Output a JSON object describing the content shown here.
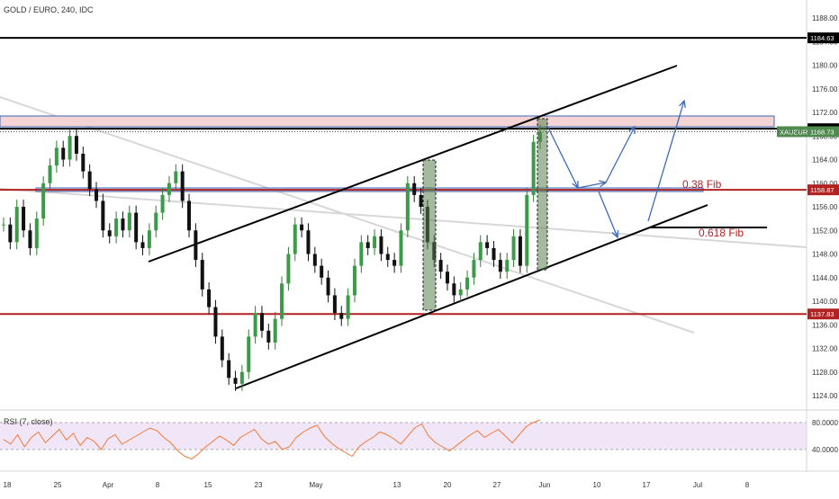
{
  "header": {
    "title": "GOLD / EURO, 240, IDC"
  },
  "rsi": {
    "title": "RSI (7, close)",
    "ticks": [
      80.0,
      40.0
    ],
    "tick_labels": [
      "80.0000",
      "40.0000"
    ]
  },
  "chart_data": {
    "type": "candlestick",
    "title": "GOLD / EURO, 240, IDC",
    "ylim": [
      1122,
      1190
    ],
    "y_ticks": [
      1124,
      1128,
      1132,
      1136,
      1140,
      1144,
      1148,
      1152,
      1156,
      1160,
      1164,
      1168,
      1172,
      1176,
      1180,
      1184,
      1188
    ],
    "y_tick_labels": [
      "1124.00",
      "1128.00",
      "1132.00",
      "1136.00",
      "1140.00",
      "1144.00",
      "1148.00",
      "1152.00",
      "1156.00",
      "1160.00",
      "1164.00",
      "1168.00",
      "1172.00",
      "1176.00",
      "1180.00",
      "1184.00",
      "1188.00"
    ],
    "x_ticks": [
      "18",
      "25",
      "Apr",
      "8",
      "15",
      "23",
      "May",
      "13",
      "20",
      "27",
      "Jun",
      "10",
      "17",
      "Jul",
      "8"
    ],
    "close_path": [
      1153,
      1150,
      1156,
      1152,
      1149,
      1154,
      1160,
      1163,
      1166,
      1164,
      1168,
      1165,
      1162,
      1159,
      1157,
      1152,
      1151,
      1154,
      1152,
      1155,
      1150,
      1149,
      1152,
      1155,
      1158,
      1160,
      1162,
      1157,
      1152,
      1147,
      1142,
      1139,
      1134,
      1130,
      1127,
      1126,
      1128,
      1134,
      1138,
      1135,
      1133,
      1137,
      1143,
      1148,
      1153,
      1152,
      1148,
      1146,
      1144,
      1141,
      1138,
      1137,
      1141,
      1146,
      1150,
      1149,
      1151,
      1148,
      1147,
      1146,
      1152,
      1160,
      1158,
      1156,
      1150,
      1147,
      1145,
      1143,
      1141,
      1142,
      1144,
      1147,
      1150,
      1149,
      1147,
      1145,
      1147,
      1151,
      1146,
      1158,
      1167,
      1168.7
    ],
    "horizontal_levels": [
      {
        "label": "1184.63",
        "value": 1184.63,
        "color": "#000000"
      },
      {
        "label": "1169.23",
        "value": 1169.23,
        "color": "#000000"
      },
      {
        "label": "1168.73",
        "value": 1168.73,
        "color": "#4f8a4f",
        "name": "XAUEUR"
      },
      {
        "label": "1158.87",
        "value": 1158.87,
        "color": "#b22222"
      },
      {
        "label": "1137.83",
        "value": 1137.83,
        "color": "#b22222"
      }
    ],
    "annotations": [
      "0.38 Fib",
      "0.618 Fib"
    ],
    "rsi_values": [
      55,
      48,
      62,
      44,
      58,
      66,
      50,
      60,
      70,
      54,
      64,
      46,
      58,
      52,
      40,
      56,
      62,
      48,
      54,
      60,
      66,
      72,
      68,
      58,
      50,
      38,
      30,
      26,
      34,
      44,
      52,
      60,
      54,
      46,
      58,
      64,
      70,
      56,
      48,
      52,
      40,
      44,
      58,
      66,
      72,
      76,
      60,
      50,
      42,
      36,
      30,
      44,
      52,
      58,
      66,
      62,
      56,
      48,
      60,
      72,
      78,
      60,
      50,
      44,
      38,
      46,
      54,
      62,
      68,
      58,
      64,
      70,
      60,
      50,
      62,
      74,
      80,
      84
    ]
  }
}
